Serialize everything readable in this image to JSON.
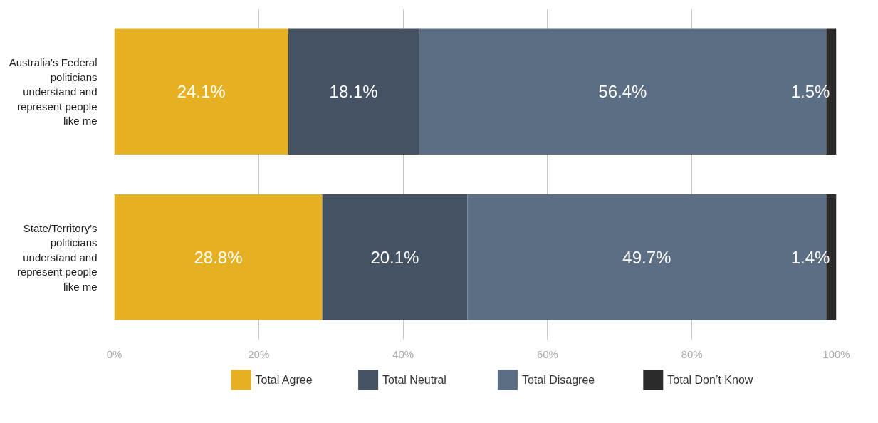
{
  "chart_data": {
    "type": "bar",
    "orientation": "horizontal",
    "stacked": true,
    "categories": [
      "Australia's Federal politicians understand and represent people like me",
      "State/Territory's politicians understand and represent people like me"
    ],
    "series": [
      {
        "name": "Total Agree",
        "color": "#e5b022",
        "values": [
          24.1,
          28.8
        ],
        "value_labels": [
          "24.1%",
          "28.8%"
        ]
      },
      {
        "name": "Total Neutral",
        "color": "#445263",
        "values": [
          18.1,
          20.1
        ],
        "value_labels": [
          "18.1%",
          "20.1%"
        ]
      },
      {
        "name": "Total Disagree",
        "color": "#5b6e84",
        "values": [
          56.4,
          49.7
        ],
        "value_labels": [
          "56.4%",
          "49.7%"
        ]
      },
      {
        "name": "Total Don’t Know",
        "color": "#2b2b2b",
        "values": [
          1.5,
          1.4
        ],
        "value_labels": [
          "1.5%",
          "1.4%"
        ]
      }
    ],
    "xlim": [
      0,
      100
    ],
    "xticks": [
      {
        "value": 0,
        "label": "0%"
      },
      {
        "value": 20,
        "label": "20%"
      },
      {
        "value": 40,
        "label": "40%"
      },
      {
        "value": 60,
        "label": "60%"
      },
      {
        "value": 80,
        "label": "80%"
      },
      {
        "value": 100,
        "label": "100%"
      }
    ],
    "grid": "x",
    "legend": "bottom"
  }
}
